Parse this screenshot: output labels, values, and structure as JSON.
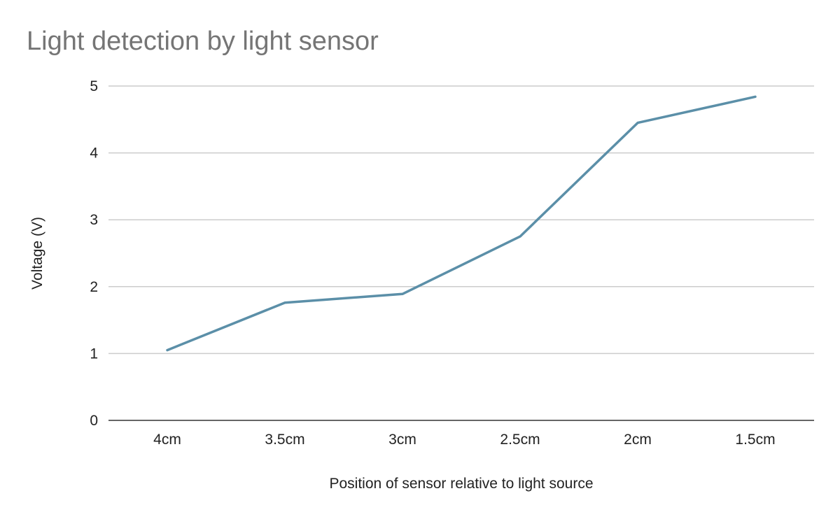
{
  "chart_data": {
    "type": "line",
    "title": "Light detection by light sensor",
    "xlabel": "Position of sensor relative to light source",
    "ylabel": "Voltage (V)",
    "categories": [
      "4cm",
      "3.5cm",
      "3cm",
      "2.5cm",
      "2cm",
      "1.5cm"
    ],
    "series": [
      {
        "values": [
          1.05,
          1.76,
          1.89,
          2.75,
          4.45,
          4.84
        ]
      }
    ],
    "ylim": [
      0,
      5
    ],
    "yticks": [
      "0",
      "1",
      "2",
      "3",
      "4",
      "5"
    ],
    "grid": true,
    "legend": "none",
    "colors": {
      "line": "#5b8fa8",
      "grid": "#cccccc",
      "axis": "#333333",
      "title": "#757575"
    }
  }
}
